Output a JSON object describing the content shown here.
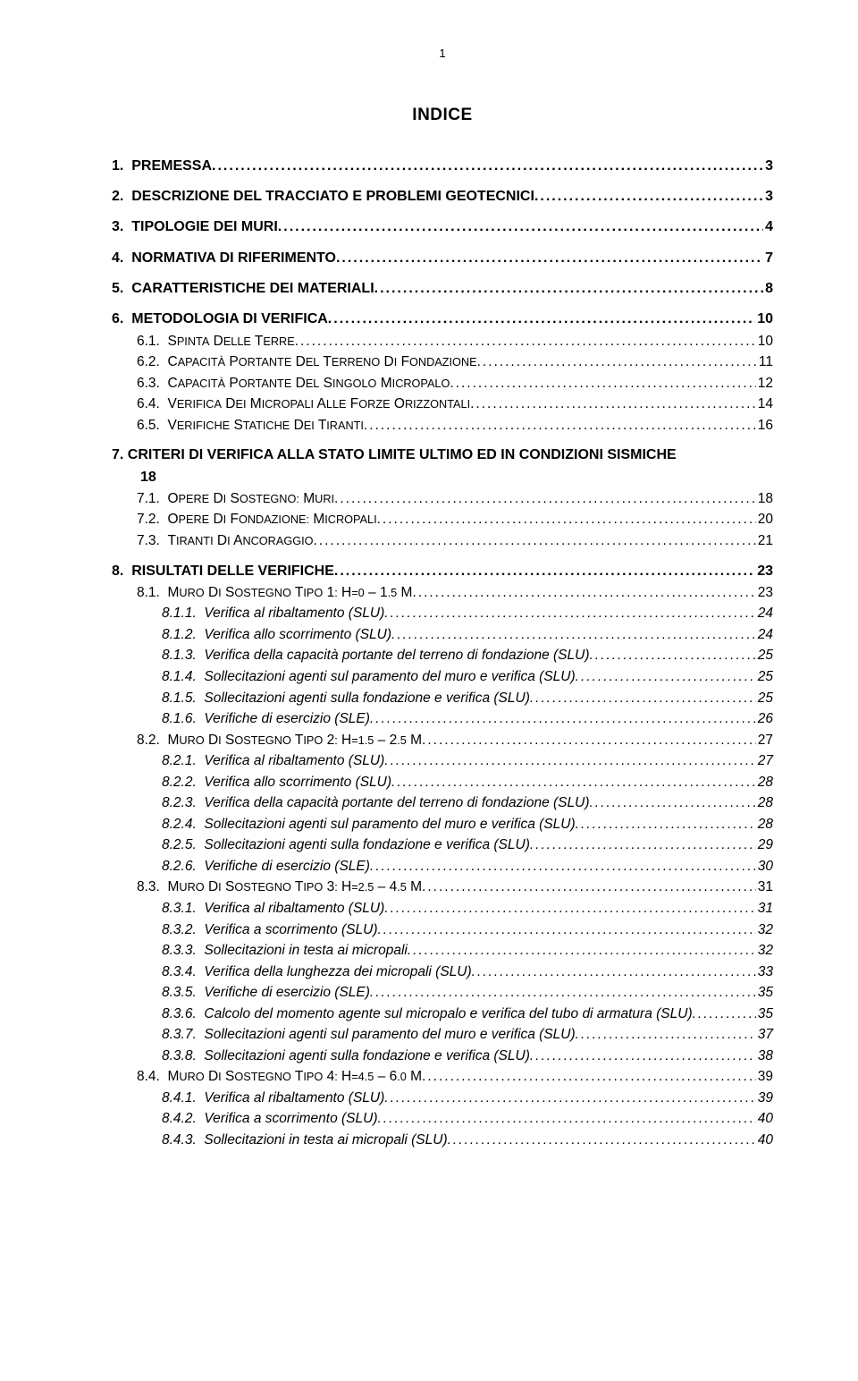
{
  "page_number": "1",
  "title": "INDICE",
  "entries": [
    {
      "level": 1,
      "num": "1.",
      "text": "PREMESSA",
      "page": "3"
    },
    {
      "level": 1,
      "num": "2.",
      "text": "DESCRIZIONE DEL TRACCIATO E PROBLEMI GEOTECNICI",
      "page": "3"
    },
    {
      "level": 1,
      "num": "3.",
      "text": "TIPOLOGIE DEI MURI",
      "page": "4"
    },
    {
      "level": 1,
      "num": "4.",
      "text": "NORMATIVA DI RIFERIMENTO",
      "page": "7"
    },
    {
      "level": 1,
      "num": "5.",
      "text": "CARATTERISTICHE DEI MATERIALI",
      "page": "8"
    },
    {
      "level": 1,
      "num": "6.",
      "text": "METODOLOGIA DI VERIFICA",
      "page": "10"
    },
    {
      "level": 2,
      "num": "6.1.",
      "text": "SPINTA DELLE TERRE",
      "page": "10",
      "sc": true
    },
    {
      "level": 2,
      "num": "6.2.",
      "text": "CAPACITÀ PORTANTE DEL TERRENO DI FONDAZIONE",
      "page": "11",
      "sc": true
    },
    {
      "level": 2,
      "num": "6.3.",
      "text": "CAPACITÀ PORTANTE DEL SINGOLO MICROPALO",
      "page": "12",
      "sc": true
    },
    {
      "level": 2,
      "num": "6.4.",
      "text": "VERIFICA DEI MICROPALI ALLE FORZE ORIZZONTALI",
      "page": "14",
      "sc": true
    },
    {
      "level": 2,
      "num": "6.5.",
      "text": "VERIFICHE STATICHE DEI TIRANTI",
      "page": "16",
      "sc": true
    },
    {
      "level": 1,
      "num": "7.",
      "text": "CRITERI DI VERIFICA ALLA STATO LIMITE ULTIMO ED IN CONDIZIONI SISMICHE",
      "page": "18",
      "multiline": true,
      "tail": "18"
    },
    {
      "level": 2,
      "num": "7.1.",
      "text": "OPERE DI SOSTEGNO: MURI",
      "page": "18",
      "sc": true
    },
    {
      "level": 2,
      "num": "7.2.",
      "text": "OPERE DI FONDAZIONE: MICROPALI",
      "page": "20",
      "sc": true
    },
    {
      "level": 2,
      "num": "7.3.",
      "text": "TIRANTI DI ANCORAGGIO",
      "page": "21",
      "sc": true
    },
    {
      "level": 1,
      "num": "8.",
      "text": "RISULTATI DELLE VERIFICHE",
      "page": "23"
    },
    {
      "level": 2,
      "num": "8.1.",
      "text": "MURO DI SOSTEGNO TIPO 1: H=0 – 1.5 M",
      "page": "23",
      "sc": true
    },
    {
      "level": 3,
      "num": "8.1.1.",
      "text": "Verifica al ribaltamento (SLU)",
      "page": "24"
    },
    {
      "level": 3,
      "num": "8.1.2.",
      "text": "Verifica allo scorrimento (SLU)",
      "page": "24"
    },
    {
      "level": 3,
      "num": "8.1.3.",
      "text": "Verifica della capacità portante del terreno di fondazione (SLU)",
      "page": "25"
    },
    {
      "level": 3,
      "num": "8.1.4.",
      "text": "Sollecitazioni agenti sul paramento del muro e verifica (SLU)",
      "page": "25"
    },
    {
      "level": 3,
      "num": "8.1.5.",
      "text": "Sollecitazioni agenti sulla fondazione e verifica (SLU)",
      "page": "25"
    },
    {
      "level": 3,
      "num": "8.1.6.",
      "text": "Verifiche di esercizio (SLE)",
      "page": "26"
    },
    {
      "level": 2,
      "num": "8.2.",
      "text": "MURO DI SOSTEGNO TIPO 2: H=1.5 – 2.5 M",
      "page": "27",
      "sc": true
    },
    {
      "level": 3,
      "num": "8.2.1.",
      "text": "Verifica al ribaltamento (SLU)",
      "page": "27"
    },
    {
      "level": 3,
      "num": "8.2.2.",
      "text": "Verifica allo scorrimento (SLU)",
      "page": "28"
    },
    {
      "level": 3,
      "num": "8.2.3.",
      "text": "Verifica della capacità portante del terreno di fondazione (SLU)",
      "page": "28"
    },
    {
      "level": 3,
      "num": "8.2.4.",
      "text": "Sollecitazioni agenti sul paramento del muro e verifica (SLU)",
      "page": "28"
    },
    {
      "level": 3,
      "num": "8.2.5.",
      "text": "Sollecitazioni agenti sulla fondazione e verifica (SLU)",
      "page": "29"
    },
    {
      "level": 3,
      "num": "8.2.6.",
      "text": "Verifiche di esercizio (SLE)",
      "page": "30"
    },
    {
      "level": 2,
      "num": "8.3.",
      "text": "MURO DI SOSTEGNO TIPO 3: H=2.5 – 4.5 M",
      "page": "31",
      "sc": true
    },
    {
      "level": 3,
      "num": "8.3.1.",
      "text": "Verifica al ribaltamento (SLU)",
      "page": "31"
    },
    {
      "level": 3,
      "num": "8.3.2.",
      "text": "Verifica a scorrimento (SLU)",
      "page": "32"
    },
    {
      "level": 3,
      "num": "8.3.3.",
      "text": "Sollecitazioni in testa ai micropali",
      "page": "32"
    },
    {
      "level": 3,
      "num": "8.3.4.",
      "text": "Verifica della lunghezza dei micropali (SLU)",
      "page": "33"
    },
    {
      "level": 3,
      "num": "8.3.5.",
      "text": "Verifiche di esercizio (SLE)",
      "page": "35"
    },
    {
      "level": 3,
      "num": "8.3.6.",
      "text": "Calcolo del momento agente sul micropalo e verifica del tubo di armatura (SLU)",
      "page": "35"
    },
    {
      "level": 3,
      "num": "8.3.7.",
      "text": "Sollecitazioni agenti sul paramento del muro e verifica (SLU)",
      "page": "37"
    },
    {
      "level": 3,
      "num": "8.3.8.",
      "text": "Sollecitazioni agenti sulla fondazione e verifica (SLU)",
      "page": "38"
    },
    {
      "level": 2,
      "num": "8.4.",
      "text": "MURO DI SOSTEGNO TIPO 4: H=4.5 – 6.0 M",
      "page": "39",
      "sc": true
    },
    {
      "level": 3,
      "num": "8.4.1.",
      "text": "Verifica al ribaltamento (SLU)",
      "page": "39"
    },
    {
      "level": 3,
      "num": "8.4.2.",
      "text": "Verifica a scorrimento (SLU)",
      "page": "40"
    },
    {
      "level": 3,
      "num": "8.4.3.",
      "text": "Sollecitazioni in testa ai micropali (SLU)",
      "page": "40"
    }
  ]
}
